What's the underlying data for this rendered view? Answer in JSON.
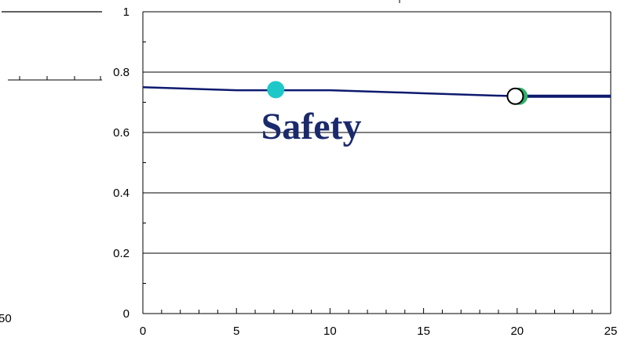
{
  "chart_data": {
    "type": "line",
    "title": "",
    "xlabel": "",
    "ylabel": "",
    "xlim": [
      0,
      25
    ],
    "ylim": [
      0,
      1
    ],
    "x_ticks": [
      0,
      5,
      10,
      15,
      20,
      25
    ],
    "y_ticks": [
      0,
      0.2,
      0.4,
      0.6,
      0.8,
      1
    ],
    "x_tick_labels": [
      "0",
      "5",
      "10",
      "15",
      "20",
      "25"
    ],
    "y_tick_labels": [
      "0",
      "0.2",
      "0.4",
      "0.6",
      "0.8",
      "1"
    ],
    "grid": "horizontal",
    "series": [
      {
        "color": "#0d1a6e",
        "x": [
          0,
          5,
          10,
          15,
          20,
          25
        ],
        "y": [
          0.75,
          0.74,
          0.74,
          0.73,
          0.72,
          0.72
        ]
      }
    ],
    "markers": [
      {
        "x": 7.1,
        "y": 0.742,
        "fill": "#1fc8c8",
        "stroke": "#1fc8c8"
      },
      {
        "x": 20.1,
        "y": 0.72,
        "fill": "#2fb36a",
        "stroke": "#2fb36a"
      },
      {
        "x": 19.9,
        "y": 0.72,
        "fill": "#ffffff",
        "stroke": "#000000"
      }
    ],
    "annotations": [
      {
        "text": "Safety",
        "x": 9.0,
        "y": 0.6,
        "color": "#1a2a6c"
      }
    ]
  },
  "left_panel": {
    "partial_tick_label": "50"
  }
}
